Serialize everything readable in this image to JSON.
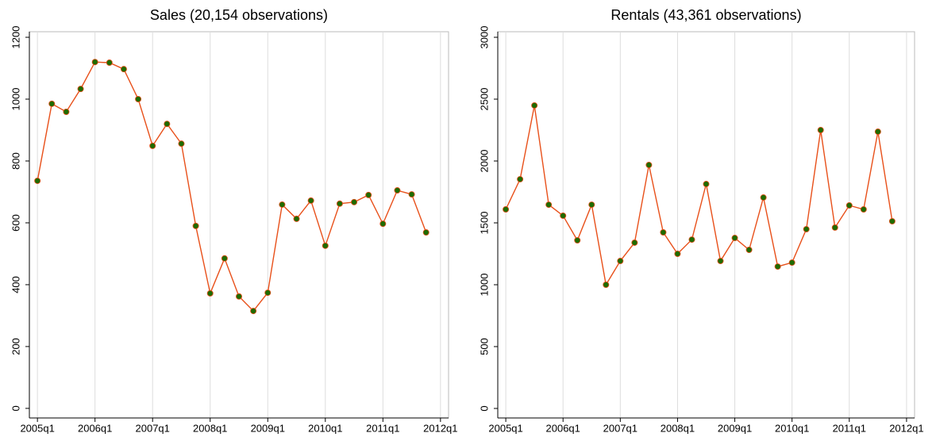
{
  "chart_data": [
    {
      "type": "line",
      "title": "Sales (20,154 observations)",
      "x": [
        2005,
        2005.25,
        2005.5,
        2005.75,
        2006,
        2006.25,
        2006.5,
        2006.75,
        2007,
        2007.25,
        2007.5,
        2007.75,
        2008,
        2008.25,
        2008.5,
        2008.75,
        2009,
        2009.25,
        2009.5,
        2009.75,
        2010,
        2010.25,
        2010.5,
        2010.75,
        2011,
        2011.25,
        2011.5,
        2011.75
      ],
      "series": [
        {
          "color": "#e8501a",
          "marker_color": "#1f6b00",
          "values": [
            736,
            985,
            959,
            1033,
            1120,
            1118,
            1097,
            1000,
            849,
            920,
            856,
            590,
            372,
            485,
            362,
            315,
            374,
            659,
            613,
            672,
            526,
            662,
            667,
            690,
            597,
            705,
            692,
            569
          ]
        }
      ],
      "xlim": [
        2004.86,
        2012.14
      ],
      "xticks": [
        {
          "value": 2005,
          "label": "2005q1"
        },
        {
          "value": 2006,
          "label": "2006q1"
        },
        {
          "value": 2007,
          "label": "2007q1"
        },
        {
          "value": 2008,
          "label": "2008q1"
        },
        {
          "value": 2009,
          "label": "2009q1"
        },
        {
          "value": 2010,
          "label": "2010q1"
        },
        {
          "value": 2011,
          "label": "2011q1"
        },
        {
          "value": 2012,
          "label": "2012q1"
        }
      ],
      "ylim": [
        -31,
        1218
      ],
      "yticks": [
        0,
        200,
        400,
        600,
        800,
        1000,
        1200
      ],
      "grid": true
    },
    {
      "type": "line",
      "title": "Rentals (43,361 observations)",
      "x": [
        2005,
        2005.25,
        2005.5,
        2005.75,
        2006,
        2006.25,
        2006.5,
        2006.75,
        2007,
        2007.25,
        2007.5,
        2007.75,
        2008,
        2008.25,
        2008.5,
        2008.75,
        2009,
        2009.25,
        2009.5,
        2009.75,
        2010,
        2010.25,
        2010.5,
        2010.75,
        2011,
        2011.25,
        2011.5,
        2011.75
      ],
      "series": [
        {
          "color": "#e8501a",
          "marker_color": "#1f6b00",
          "values": [
            1609,
            1853,
            2449,
            1647,
            1558,
            1359,
            1647,
            1000,
            1192,
            1340,
            1968,
            1423,
            1250,
            1365,
            1814,
            1192,
            1378,
            1282,
            1705,
            1147,
            1179,
            1449,
            2250,
            1462,
            1641,
            1609,
            2237,
            1513
          ]
        }
      ],
      "xlim": [
        2004.86,
        2012.14
      ],
      "xticks": [
        {
          "value": 2005,
          "label": "2005q1"
        },
        {
          "value": 2006,
          "label": "2006q1"
        },
        {
          "value": 2007,
          "label": "2007q1"
        },
        {
          "value": 2008,
          "label": "2008q1"
        },
        {
          "value": 2009,
          "label": "2009q1"
        },
        {
          "value": 2010,
          "label": "2010q1"
        },
        {
          "value": 2011,
          "label": "2011q1"
        },
        {
          "value": 2012,
          "label": "2012q1"
        }
      ],
      "ylim": [
        -77,
        3045
      ],
      "yticks": [
        0,
        500,
        1000,
        1500,
        2000,
        2500,
        3000
      ],
      "grid": true
    }
  ]
}
